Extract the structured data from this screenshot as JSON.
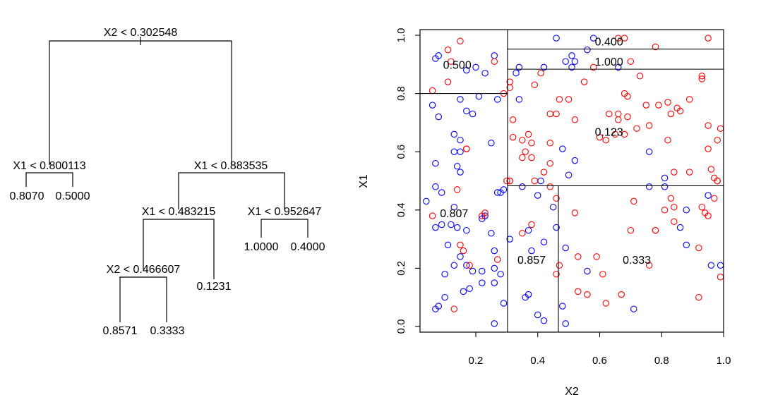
{
  "chart_data": [
    {
      "type": "tree",
      "nodes": [
        {
          "id": "root",
          "label": "X2 < 0.302548"
        },
        {
          "id": "n1",
          "label": "X1 < 0.800113"
        },
        {
          "id": "n2",
          "label": "X1 < 0.883535"
        },
        {
          "id": "n3",
          "label": "X1 < 0.483215"
        },
        {
          "id": "n4",
          "label": "X1 < 0.952647"
        },
        {
          "id": "n5",
          "label": "X2 < 0.466607"
        }
      ],
      "leaves": [
        {
          "id": "l1",
          "label": "0.8070"
        },
        {
          "id": "l2",
          "label": "0.5000"
        },
        {
          "id": "l3",
          "label": "1.0000"
        },
        {
          "id": "l4",
          "label": "0.4000"
        },
        {
          "id": "l5",
          "label": "0.1231"
        },
        {
          "id": "l6",
          "label": "0.8571"
        },
        {
          "id": "l7",
          "label": "0.3333"
        }
      ],
      "edges": [
        [
          "root",
          "n1"
        ],
        [
          "root",
          "n2"
        ],
        [
          "n1",
          "l1"
        ],
        [
          "n1",
          "l2"
        ],
        [
          "n2",
          "n3"
        ],
        [
          "n2",
          "n4"
        ],
        [
          "n3",
          "n5"
        ],
        [
          "n3",
          "l5"
        ],
        [
          "n4",
          "l3"
        ],
        [
          "n4",
          "l4"
        ],
        [
          "n5",
          "l6"
        ],
        [
          "n5",
          "l7"
        ]
      ]
    },
    {
      "type": "scatter",
      "xlabel": "X2",
      "ylabel": "X1",
      "xlim": [
        0.02,
        1.0
      ],
      "ylim": [
        0.0,
        1.0
      ],
      "xticks": [
        "0.2",
        "0.4",
        "0.6",
        "0.8",
        "1.0"
      ],
      "yticks": [
        "0.0",
        "0.2",
        "0.4",
        "0.6",
        "0.8",
        "1.0"
      ],
      "xtick_values": [
        0.2,
        0.4,
        0.6,
        0.8,
        1.0
      ],
      "ytick_values": [
        0.0,
        0.2,
        0.4,
        0.6,
        0.8,
        1.0
      ],
      "series_colors": {
        "blue": "#0000ff",
        "red": "#ff0000"
      },
      "partition_lines": [
        {
          "orient": "v",
          "x": 0.3025,
          "y0": 0.0,
          "y1": 1.0
        },
        {
          "orient": "h",
          "y": 0.8001,
          "x0": 0.02,
          "x1": 0.3025
        },
        {
          "orient": "h",
          "y": 0.8835,
          "x0": 0.3025,
          "x1": 1.0
        },
        {
          "orient": "h",
          "y": 0.9526,
          "x0": 0.3025,
          "x1": 1.0
        },
        {
          "orient": "h",
          "y": 0.4832,
          "x0": 0.3025,
          "x1": 1.0
        },
        {
          "orient": "v",
          "x": 0.4666,
          "y0": 0.0,
          "y1": 0.4832
        }
      ],
      "region_labels": [
        {
          "x": 0.14,
          "y": 0.9,
          "label": "0.500"
        },
        {
          "x": 0.63,
          "y": 0.98,
          "label": "0.400"
        },
        {
          "x": 0.63,
          "y": 0.91,
          "label": "1.000"
        },
        {
          "x": 0.63,
          "y": 0.67,
          "label": "0.123"
        },
        {
          "x": 0.13,
          "y": 0.39,
          "label": "0.807"
        },
        {
          "x": 0.38,
          "y": 0.23,
          "label": "0.857"
        },
        {
          "x": 0.72,
          "y": 0.23,
          "label": "0.333"
        }
      ],
      "points": {
        "blue": [
          [
            0.07,
            0.92
          ],
          [
            0.08,
            0.93
          ],
          [
            0.17,
            0.88
          ],
          [
            0.2,
            0.89
          ],
          [
            0.23,
            0.87
          ],
          [
            0.26,
            0.93
          ],
          [
            0.27,
            0.78
          ],
          [
            0.29,
            0.47
          ],
          [
            0.15,
            0.78
          ],
          [
            0.17,
            0.74
          ],
          [
            0.19,
            0.73
          ],
          [
            0.21,
            0.79
          ],
          [
            0.06,
            0.76
          ],
          [
            0.08,
            0.72
          ],
          [
            0.13,
            0.66
          ],
          [
            0.15,
            0.64
          ],
          [
            0.13,
            0.6
          ],
          [
            0.15,
            0.6
          ],
          [
            0.14,
            0.55
          ],
          [
            0.15,
            0.53
          ],
          [
            0.07,
            0.56
          ],
          [
            0.25,
            0.63
          ],
          [
            0.27,
            0.46
          ],
          [
            0.28,
            0.46
          ],
          [
            0.07,
            0.48
          ],
          [
            0.09,
            0.46
          ],
          [
            0.04,
            0.43
          ],
          [
            0.09,
            0.35
          ],
          [
            0.07,
            0.34
          ],
          [
            0.13,
            0.41
          ],
          [
            0.12,
            0.35
          ],
          [
            0.14,
            0.34
          ],
          [
            0.17,
            0.33
          ],
          [
            0.11,
            0.28
          ],
          [
            0.15,
            0.24
          ],
          [
            0.13,
            0.21
          ],
          [
            0.17,
            0.21
          ],
          [
            0.19,
            0.19
          ],
          [
            0.22,
            0.19
          ],
          [
            0.26,
            0.26
          ],
          [
            0.26,
            0.2
          ],
          [
            0.28,
            0.18
          ],
          [
            0.25,
            0.32
          ],
          [
            0.23,
            0.38
          ],
          [
            0.22,
            0.37
          ],
          [
            0.1,
            0.18
          ],
          [
            0.16,
            0.12
          ],
          [
            0.18,
            0.13
          ],
          [
            0.22,
            0.15
          ],
          [
            0.26,
            0.15
          ],
          [
            0.1,
            0.1
          ],
          [
            0.08,
            0.07
          ],
          [
            0.07,
            0.06
          ],
          [
            0.29,
            0.08
          ],
          [
            0.26,
            0.01
          ],
          [
            0.34,
            0.89
          ],
          [
            0.33,
            0.87
          ],
          [
            0.42,
            0.89
          ],
          [
            0.46,
            0.99
          ],
          [
            0.51,
            0.93
          ],
          [
            0.52,
            0.91
          ],
          [
            0.51,
            0.89
          ],
          [
            0.49,
            0.91
          ],
          [
            0.56,
            0.95
          ],
          [
            0.58,
            0.99
          ],
          [
            0.66,
            0.89
          ],
          [
            0.34,
            0.78
          ],
          [
            0.48,
            0.61
          ],
          [
            0.52,
            0.57
          ],
          [
            0.5,
            0.52
          ],
          [
            0.41,
            0.5
          ],
          [
            0.35,
            0.48
          ],
          [
            0.4,
            0.45
          ],
          [
            0.45,
            0.41
          ],
          [
            0.31,
            0.3
          ],
          [
            0.37,
            0.33
          ],
          [
            0.42,
            0.29
          ],
          [
            0.38,
            0.26
          ],
          [
            0.46,
            0.34
          ],
          [
            0.37,
            0.11
          ],
          [
            0.36,
            0.1
          ],
          [
            0.4,
            0.04
          ],
          [
            0.42,
            0.02
          ],
          [
            0.48,
            0.07
          ],
          [
            0.49,
            0.01
          ],
          [
            0.49,
            0.27
          ],
          [
            0.56,
            0.19
          ],
          [
            0.71,
            0.06
          ],
          [
            0.76,
            0.6
          ],
          [
            0.76,
            0.48
          ],
          [
            0.81,
            0.51
          ],
          [
            0.81,
            0.48
          ],
          [
            0.86,
            0.34
          ],
          [
            0.88,
            0.4
          ],
          [
            0.88,
            0.28
          ],
          [
            0.95,
            0.45
          ],
          [
            0.96,
            0.21
          ],
          [
            0.99,
            0.21
          ]
        ],
        "red": [
          [
            0.15,
            0.98
          ],
          [
            0.11,
            0.95
          ],
          [
            0.12,
            0.91
          ],
          [
            0.26,
            0.91
          ],
          [
            0.11,
            0.84
          ],
          [
            0.06,
            0.81
          ],
          [
            0.29,
            0.8
          ],
          [
            0.31,
            0.82
          ],
          [
            0.31,
            0.84
          ],
          [
            0.17,
            0.61
          ],
          [
            0.17,
            0.61
          ],
          [
            0.14,
            0.47
          ],
          [
            0.06,
            0.38
          ],
          [
            0.22,
            0.38
          ],
          [
            0.23,
            0.39
          ],
          [
            0.15,
            0.28
          ],
          [
            0.16,
            0.26
          ],
          [
            0.18,
            0.21
          ],
          [
            0.13,
            0.06
          ],
          [
            0.27,
            0.23
          ],
          [
            0.3,
            0.5
          ],
          [
            0.31,
            0.5
          ],
          [
            0.39,
            0.83
          ],
          [
            0.41,
            0.87
          ],
          [
            0.44,
            0.73
          ],
          [
            0.46,
            0.73
          ],
          [
            0.47,
            0.78
          ],
          [
            0.5,
            0.78
          ],
          [
            0.52,
            0.71
          ],
          [
            0.55,
            0.84
          ],
          [
            0.58,
            0.89
          ],
          [
            0.6,
            0.65
          ],
          [
            0.62,
            0.64
          ],
          [
            0.66,
            0.99
          ],
          [
            0.68,
            0.99
          ],
          [
            0.7,
            0.91
          ],
          [
            0.73,
            0.86
          ],
          [
            0.78,
            0.96
          ],
          [
            0.68,
            0.8
          ],
          [
            0.69,
            0.79
          ],
          [
            0.66,
            0.73
          ],
          [
            0.66,
            0.71
          ],
          [
            0.69,
            0.72
          ],
          [
            0.72,
            0.68
          ],
          [
            0.68,
            0.66
          ],
          [
            0.65,
            0.66
          ],
          [
            0.63,
            0.73
          ],
          [
            0.75,
            0.76
          ],
          [
            0.79,
            0.76
          ],
          [
            0.82,
            0.77
          ],
          [
            0.83,
            0.73
          ],
          [
            0.85,
            0.75
          ],
          [
            0.86,
            0.74
          ],
          [
            0.89,
            0.78
          ],
          [
            0.93,
            0.86
          ],
          [
            0.93,
            0.85
          ],
          [
            0.95,
            0.69
          ],
          [
            0.99,
            0.68
          ],
          [
            0.98,
            0.64
          ],
          [
            0.95,
            0.61
          ],
          [
            0.96,
            0.54
          ],
          [
            0.98,
            0.5
          ],
          [
            0.84,
            0.53
          ],
          [
            0.82,
            0.64
          ],
          [
            0.76,
            0.69
          ],
          [
            0.32,
            0.71
          ],
          [
            0.32,
            0.65
          ],
          [
            0.35,
            0.64
          ],
          [
            0.37,
            0.66
          ],
          [
            0.38,
            0.63
          ],
          [
            0.36,
            0.6
          ],
          [
            0.35,
            0.58
          ],
          [
            0.38,
            0.58
          ],
          [
            0.42,
            0.53
          ],
          [
            0.44,
            0.63
          ],
          [
            0.44,
            0.56
          ],
          [
            0.39,
            0.5
          ],
          [
            0.31,
            0.5
          ],
          [
            0.38,
            0.35
          ],
          [
            0.35,
            0.32
          ],
          [
            0.44,
            0.48
          ],
          [
            0.46,
            0.44
          ],
          [
            0.47,
            0.21
          ],
          [
            0.46,
            0.18
          ],
          [
            0.52,
            0.39
          ],
          [
            0.53,
            0.24
          ],
          [
            0.53,
            0.12
          ],
          [
            0.56,
            0.11
          ],
          [
            0.59,
            0.24
          ],
          [
            0.61,
            0.18
          ],
          [
            0.62,
            0.08
          ],
          [
            0.67,
            0.11
          ],
          [
            0.71,
            0.43
          ],
          [
            0.7,
            0.33
          ],
          [
            0.76,
            0.21
          ],
          [
            0.78,
            0.33
          ],
          [
            0.78,
            0.33
          ],
          [
            0.81,
            0.4
          ],
          [
            0.83,
            0.44
          ],
          [
            0.84,
            0.41
          ],
          [
            0.84,
            0.36
          ],
          [
            0.89,
            0.53
          ],
          [
            0.93,
            0.41
          ],
          [
            0.94,
            0.39
          ],
          [
            0.95,
            0.38
          ],
          [
            0.97,
            0.44
          ],
          [
            0.97,
            0.51
          ],
          [
            0.98,
            0.5
          ],
          [
            0.92,
            0.27
          ],
          [
            0.92,
            0.1
          ],
          [
            0.95,
            0.99
          ],
          [
            0.99,
            0.17
          ]
        ]
      }
    }
  ]
}
